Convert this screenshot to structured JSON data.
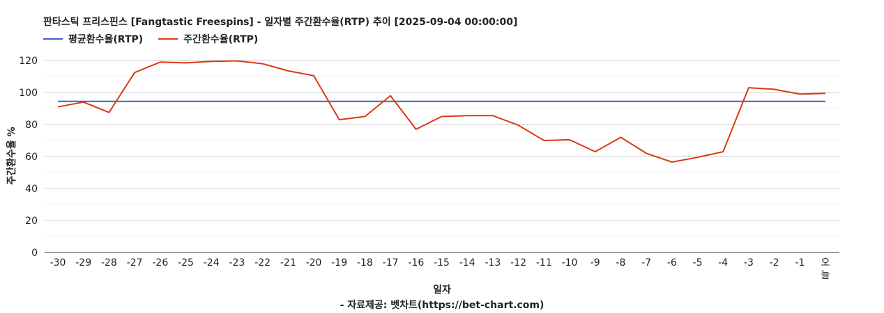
{
  "chart_data": {
    "type": "line",
    "title": "판타스틱 프리스핀스 [Fangtastic Freespins] - 일자별 주간환수율(RTP) 추이 [2025-09-04 00:00:00]",
    "xlabel": "일자",
    "ylabel": "주간환수율 %",
    "source": "- 자료제공: 벳차트(https://bet-chart.com)",
    "ylim": [
      0,
      130
    ],
    "yticks": [
      "0",
      "20",
      "40",
      "60",
      "80",
      "100",
      "120"
    ],
    "grid": true,
    "legend_position": "top-left",
    "categories": [
      "-30",
      "-29",
      "-28",
      "-27",
      "-26",
      "-25",
      "-24",
      "-23",
      "-22",
      "-21",
      "-20",
      "-19",
      "-18",
      "-17",
      "-16",
      "-15",
      "-14",
      "-13",
      "-12",
      "-11",
      "-10",
      "-9",
      "-8",
      "-7",
      "-6",
      "-5",
      "-4",
      "-3",
      "-2",
      "-1",
      "오늘"
    ],
    "series": [
      {
        "name": "평균환수율(RTP)",
        "color": "#3366cc",
        "values": [
          94.5,
          94.5,
          94.5,
          94.5,
          94.5,
          94.5,
          94.5,
          94.5,
          94.5,
          94.5,
          94.5,
          94.5,
          94.5,
          94.5,
          94.5,
          94.5,
          94.5,
          94.5,
          94.5,
          94.5,
          94.5,
          94.5,
          94.5,
          94.5,
          94.5,
          94.5,
          94.5,
          94.5,
          94.5,
          94.5,
          94.5
        ]
      },
      {
        "name": "주간환수율(RTP)",
        "color": "#dc3912",
        "values": [
          91,
          94,
          87.5,
          112.5,
          119,
          118.5,
          119.5,
          119.8,
          118,
          113.5,
          110.5,
          83,
          85,
          98,
          77,
          85,
          85.5,
          85.5,
          79.5,
          70,
          70.5,
          63,
          72,
          62,
          56.5,
          59.5,
          63,
          103,
          102,
          99,
          99.5
        ]
      }
    ]
  }
}
